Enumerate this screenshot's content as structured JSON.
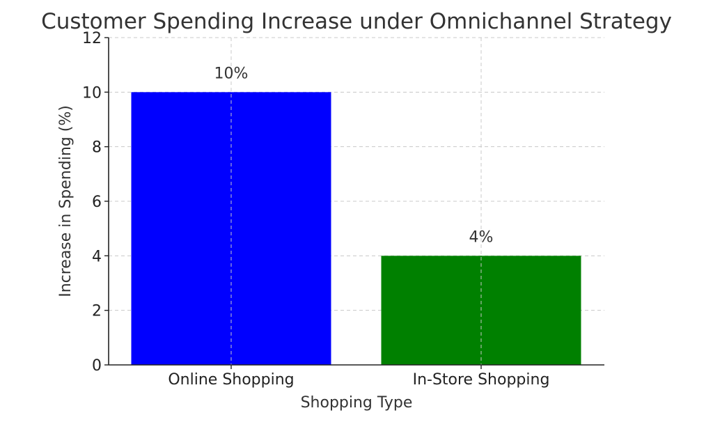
{
  "chart_data": {
    "type": "bar",
    "title": "Customer Spending Increase under Omnichannel Strategy",
    "xlabel": "Shopping Type",
    "ylabel": "Increase in Spending (%)",
    "categories": [
      "Online Shopping",
      "In-Store Shopping"
    ],
    "values": [
      10,
      4
    ],
    "data_labels": [
      "10%",
      "4%"
    ],
    "colors": [
      "#0000ff",
      "#008000"
    ],
    "ylim": [
      0,
      12
    ],
    "yticks": [
      0,
      2,
      4,
      6,
      8,
      10,
      12
    ],
    "grid": true
  }
}
